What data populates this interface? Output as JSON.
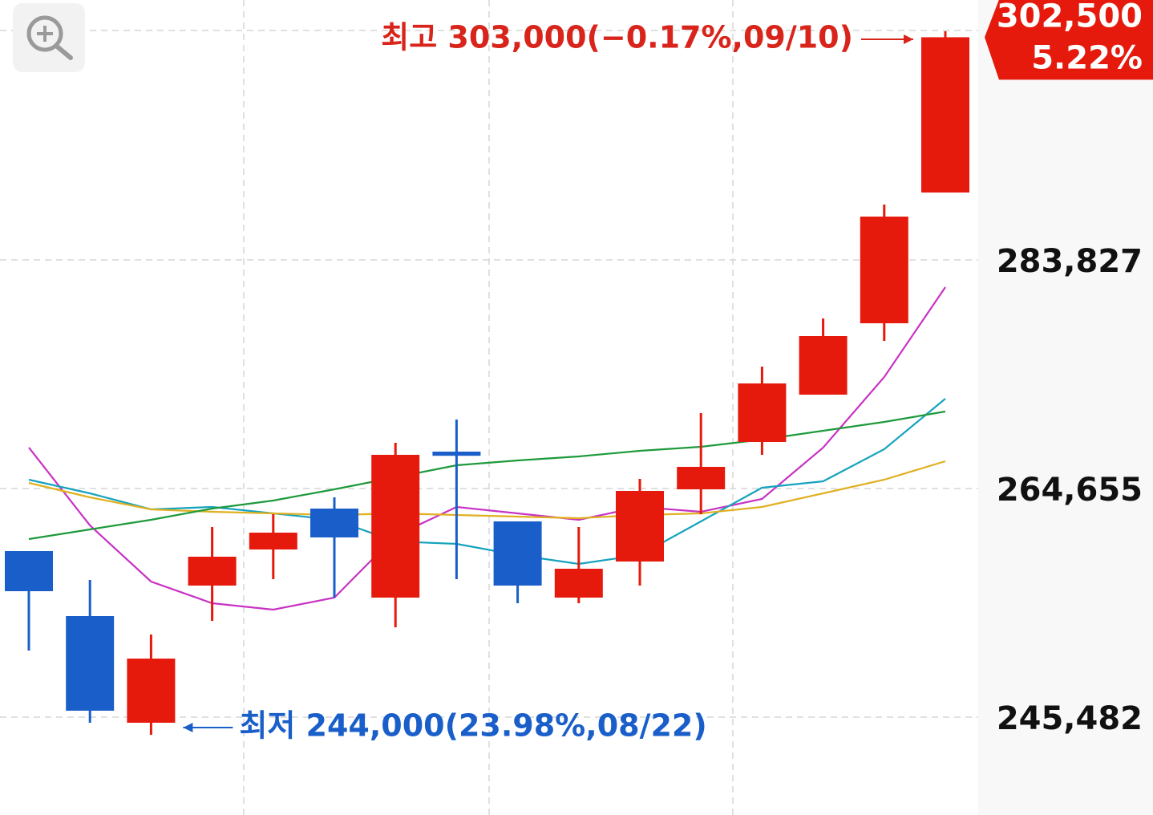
{
  "chart_data": {
    "type": "candlestick",
    "categories": [
      null,
      null,
      null,
      null,
      null,
      null,
      null,
      null,
      null,
      null,
      null,
      null,
      null,
      null,
      null,
      null
    ],
    "open": [
      259408,
      253959,
      245013,
      256515,
      259542,
      262973,
      255506,
      267749,
      261897,
      255506,
      258533,
      264588,
      268557,
      272526,
      278513,
      289478
    ],
    "high": [
      259408,
      256986,
      252412,
      261426,
      262502,
      263915,
      268489,
      270440,
      261897,
      261426,
      265462,
      270978,
      274880,
      278916,
      288469,
      303000
    ],
    "low": [
      251066,
      245013,
      244000,
      253555,
      257053,
      255506,
      253017,
      257053,
      255036,
      255036,
      256515,
      262502,
      267480,
      272526,
      277033,
      289478
    ],
    "close": [
      256044,
      246021,
      250394,
      258937,
      260955,
      260552,
      267480,
      267400,
      256515,
      257928,
      264453,
      266471,
      273467,
      277436,
      287460,
      302500
    ],
    "up_color": "#e51a0c",
    "down_color": "#1a5fc9",
    "lines": [
      {
        "color": "#c832c4",
        "values": [
          268086,
          261561,
          256852,
          255035,
          254497,
          255506,
          260686,
          263108,
          262570,
          262031,
          263108,
          262704,
          263780,
          268086,
          274006,
          281540
        ]
      },
      {
        "color": "#16a3bd",
        "values": [
          265395,
          264251,
          262906,
          263108,
          262570,
          262031,
          260215,
          260013,
          259072,
          258332,
          259072,
          261897,
          264722,
          265260,
          267951,
          272189
        ]
      },
      {
        "color": "#e0b020",
        "values": [
          265126,
          263915,
          262906,
          262704,
          262570,
          262435,
          262570,
          262435,
          262301,
          262166,
          262435,
          262570,
          263108,
          264251,
          265395,
          266942
        ]
      },
      {
        "color": "#1e9a3c",
        "values": [
          260417,
          261224,
          262031,
          262973,
          263646,
          264588,
          265597,
          266606,
          267009,
          267346,
          267817,
          268153,
          268758,
          269498,
          270238,
          271113
        ]
      }
    ],
    "ylim": [
      237275,
      305623
    ],
    "yticks": [
      {
        "value": 245482,
        "label": "245,482"
      },
      {
        "value": 264655,
        "label": "264,655"
      },
      {
        "value": 283827,
        "label": "283,827"
      }
    ],
    "grid": true,
    "price_tag": {
      "value": 302500,
      "label": "302,500",
      "change": "5.22%"
    },
    "annotations": [
      {
        "text": "최고 303,000(−0.17%,09/10)",
        "color": "#d8241a"
      },
      {
        "text": "최저 244,000(23.98%,08/22)",
        "color": "#1a5fc9"
      }
    ]
  }
}
